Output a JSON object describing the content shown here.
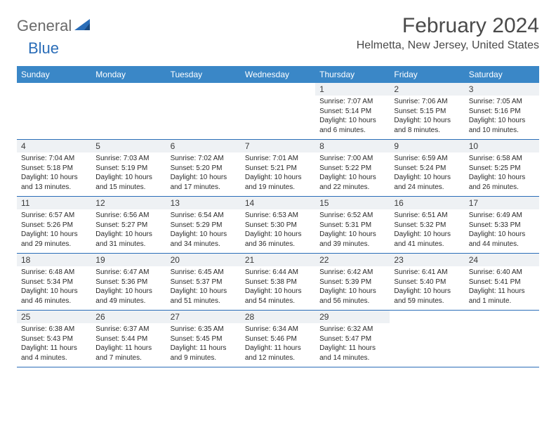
{
  "logo": {
    "general": "General",
    "blue": "Blue"
  },
  "title": "February 2024",
  "location": "Helmetta, New Jersey, United States",
  "colors": {
    "header_bg": "#3a87c7",
    "header_text": "#ffffff",
    "daynum_bg": "#eef1f4",
    "border": "#2a6db8",
    "title_text": "#4a4a4a",
    "body_text": "#2a2a2a",
    "logo_gray": "#6a6a6a",
    "logo_blue": "#2a6db8"
  },
  "dayHeaders": [
    "Sunday",
    "Monday",
    "Tuesday",
    "Wednesday",
    "Thursday",
    "Friday",
    "Saturday"
  ],
  "weeks": [
    [
      {
        "n": "",
        "sr": "",
        "ss": "",
        "dl": ""
      },
      {
        "n": "",
        "sr": "",
        "ss": "",
        "dl": ""
      },
      {
        "n": "",
        "sr": "",
        "ss": "",
        "dl": ""
      },
      {
        "n": "",
        "sr": "",
        "ss": "",
        "dl": ""
      },
      {
        "n": "1",
        "sr": "7:07 AM",
        "ss": "5:14 PM",
        "dl": "10 hours and 6 minutes."
      },
      {
        "n": "2",
        "sr": "7:06 AM",
        "ss": "5:15 PM",
        "dl": "10 hours and 8 minutes."
      },
      {
        "n": "3",
        "sr": "7:05 AM",
        "ss": "5:16 PM",
        "dl": "10 hours and 10 minutes."
      }
    ],
    [
      {
        "n": "4",
        "sr": "7:04 AM",
        "ss": "5:18 PM",
        "dl": "10 hours and 13 minutes."
      },
      {
        "n": "5",
        "sr": "7:03 AM",
        "ss": "5:19 PM",
        "dl": "10 hours and 15 minutes."
      },
      {
        "n": "6",
        "sr": "7:02 AM",
        "ss": "5:20 PM",
        "dl": "10 hours and 17 minutes."
      },
      {
        "n": "7",
        "sr": "7:01 AM",
        "ss": "5:21 PM",
        "dl": "10 hours and 19 minutes."
      },
      {
        "n": "8",
        "sr": "7:00 AM",
        "ss": "5:22 PM",
        "dl": "10 hours and 22 minutes."
      },
      {
        "n": "9",
        "sr": "6:59 AM",
        "ss": "5:24 PM",
        "dl": "10 hours and 24 minutes."
      },
      {
        "n": "10",
        "sr": "6:58 AM",
        "ss": "5:25 PM",
        "dl": "10 hours and 26 minutes."
      }
    ],
    [
      {
        "n": "11",
        "sr": "6:57 AM",
        "ss": "5:26 PM",
        "dl": "10 hours and 29 minutes."
      },
      {
        "n": "12",
        "sr": "6:56 AM",
        "ss": "5:27 PM",
        "dl": "10 hours and 31 minutes."
      },
      {
        "n": "13",
        "sr": "6:54 AM",
        "ss": "5:29 PM",
        "dl": "10 hours and 34 minutes."
      },
      {
        "n": "14",
        "sr": "6:53 AM",
        "ss": "5:30 PM",
        "dl": "10 hours and 36 minutes."
      },
      {
        "n": "15",
        "sr": "6:52 AM",
        "ss": "5:31 PM",
        "dl": "10 hours and 39 minutes."
      },
      {
        "n": "16",
        "sr": "6:51 AM",
        "ss": "5:32 PM",
        "dl": "10 hours and 41 minutes."
      },
      {
        "n": "17",
        "sr": "6:49 AM",
        "ss": "5:33 PM",
        "dl": "10 hours and 44 minutes."
      }
    ],
    [
      {
        "n": "18",
        "sr": "6:48 AM",
        "ss": "5:34 PM",
        "dl": "10 hours and 46 minutes."
      },
      {
        "n": "19",
        "sr": "6:47 AM",
        "ss": "5:36 PM",
        "dl": "10 hours and 49 minutes."
      },
      {
        "n": "20",
        "sr": "6:45 AM",
        "ss": "5:37 PM",
        "dl": "10 hours and 51 minutes."
      },
      {
        "n": "21",
        "sr": "6:44 AM",
        "ss": "5:38 PM",
        "dl": "10 hours and 54 minutes."
      },
      {
        "n": "22",
        "sr": "6:42 AM",
        "ss": "5:39 PM",
        "dl": "10 hours and 56 minutes."
      },
      {
        "n": "23",
        "sr": "6:41 AM",
        "ss": "5:40 PM",
        "dl": "10 hours and 59 minutes."
      },
      {
        "n": "24",
        "sr": "6:40 AM",
        "ss": "5:41 PM",
        "dl": "11 hours and 1 minute."
      }
    ],
    [
      {
        "n": "25",
        "sr": "6:38 AM",
        "ss": "5:43 PM",
        "dl": "11 hours and 4 minutes."
      },
      {
        "n": "26",
        "sr": "6:37 AM",
        "ss": "5:44 PM",
        "dl": "11 hours and 7 minutes."
      },
      {
        "n": "27",
        "sr": "6:35 AM",
        "ss": "5:45 PM",
        "dl": "11 hours and 9 minutes."
      },
      {
        "n": "28",
        "sr": "6:34 AM",
        "ss": "5:46 PM",
        "dl": "11 hours and 12 minutes."
      },
      {
        "n": "29",
        "sr": "6:32 AM",
        "ss": "5:47 PM",
        "dl": "11 hours and 14 minutes."
      },
      {
        "n": "",
        "sr": "",
        "ss": "",
        "dl": ""
      },
      {
        "n": "",
        "sr": "",
        "ss": "",
        "dl": ""
      }
    ]
  ],
  "labels": {
    "sunrise": "Sunrise: ",
    "sunset": "Sunset: ",
    "daylight": "Daylight: "
  }
}
